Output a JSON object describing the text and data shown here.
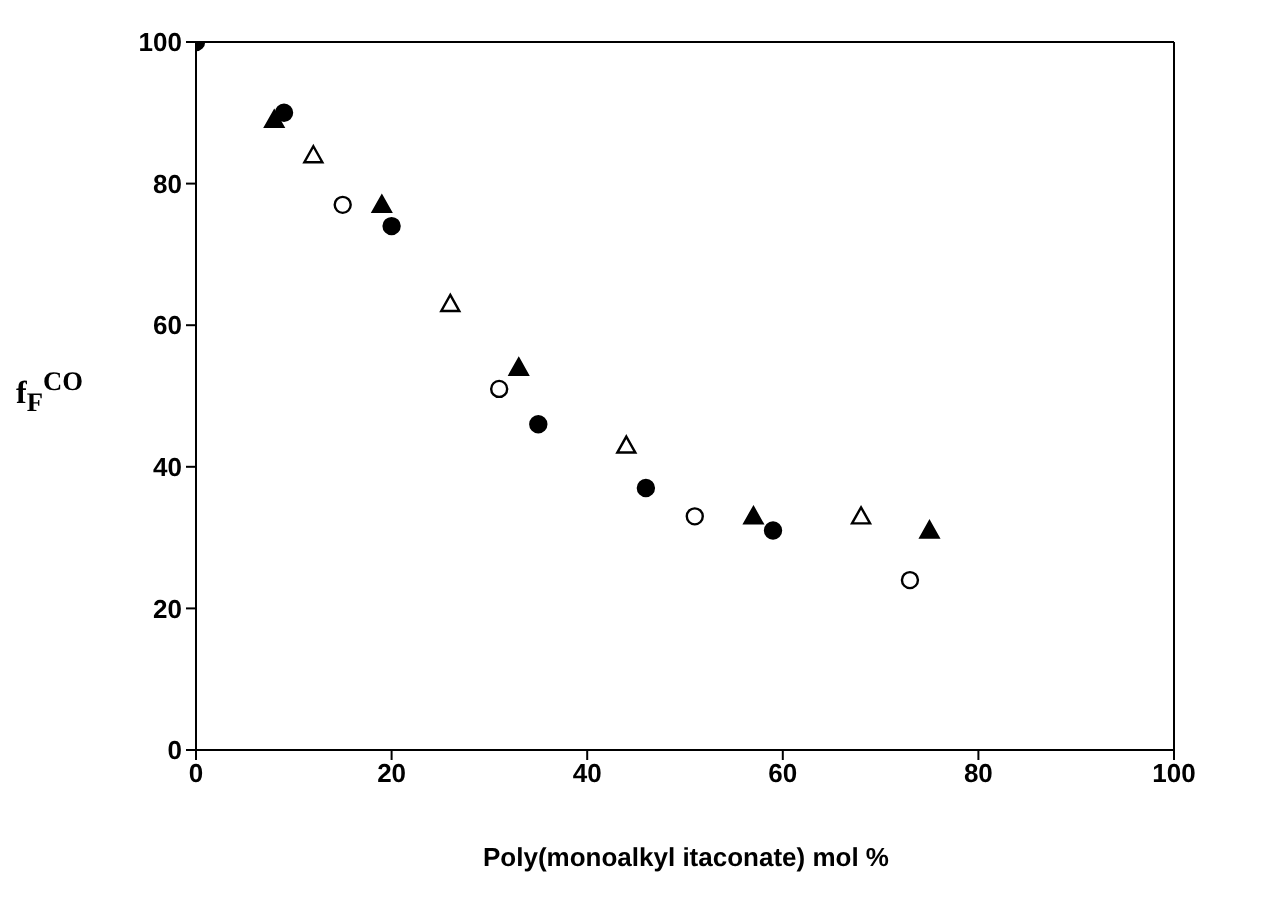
{
  "chart_data": {
    "type": "scatter",
    "xlabel": "Poly(monoalkyl itaconate) mol %",
    "ylabel": "f$_{F}$$^{CO}$",
    "xlim": [
      0,
      100
    ],
    "ylim": [
      0,
      100
    ],
    "xticks": [
      0,
      20,
      40,
      60,
      80,
      100
    ],
    "yticks": [
      0,
      20,
      40,
      60,
      80,
      100
    ],
    "legend": false,
    "series": [
      {
        "color": "#000000",
        "marker": "circle",
        "x": [
          0,
          9,
          20,
          35,
          46,
          59
        ],
        "values": [
          100,
          90,
          74,
          46,
          37,
          31
        ]
      },
      {
        "color": "#000000",
        "marker": "triangle",
        "x": [
          8,
          19,
          33,
          57,
          75
        ],
        "values": [
          89,
          77,
          54,
          33,
          31
        ]
      },
      {
        "color": "#ffffff",
        "marker": "circle",
        "x": [
          15,
          31,
          51,
          73
        ],
        "values": [
          77,
          51,
          33,
          24
        ]
      },
      {
        "color": "#ffffff",
        "marker": "triangle",
        "x": [
          12,
          26,
          44,
          68
        ],
        "values": [
          84,
          63,
          43,
          33
        ]
      }
    ]
  }
}
